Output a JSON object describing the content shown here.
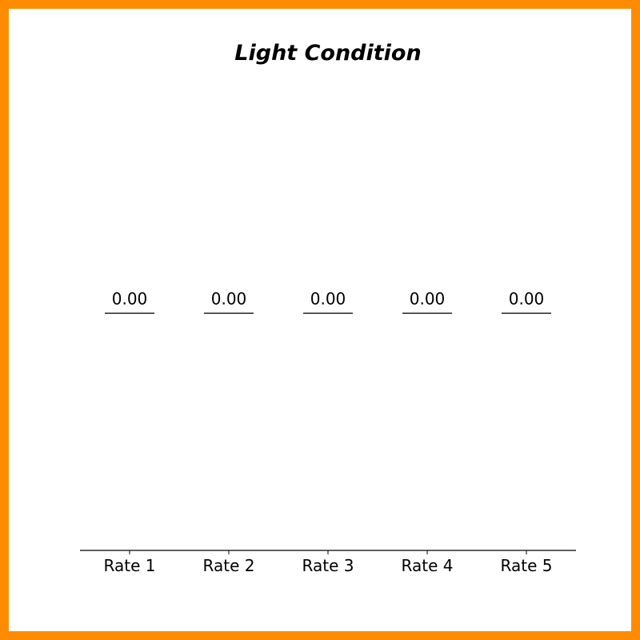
{
  "chart_data": {
    "type": "bar",
    "title": "Light Condition",
    "xlabel": "",
    "ylabel": "",
    "categories": [
      "Rate 1",
      "Rate 2",
      "Rate 3",
      "Rate 4",
      "Rate 5"
    ],
    "values": [
      0.0,
      0.0,
      0.0,
      0.0,
      0.0
    ],
    "value_labels": [
      "0.00",
      "0.00",
      "0.00",
      "0.00",
      "0.00"
    ],
    "ylim": [
      -0.055,
      0.055
    ],
    "grid": false,
    "legend": "none",
    "show_y_axis": false
  },
  "colors": {
    "frame": "#ff8c00",
    "background": "#ffffff",
    "bar": "#000000",
    "axis": "#000000",
    "text": "#000000"
  }
}
